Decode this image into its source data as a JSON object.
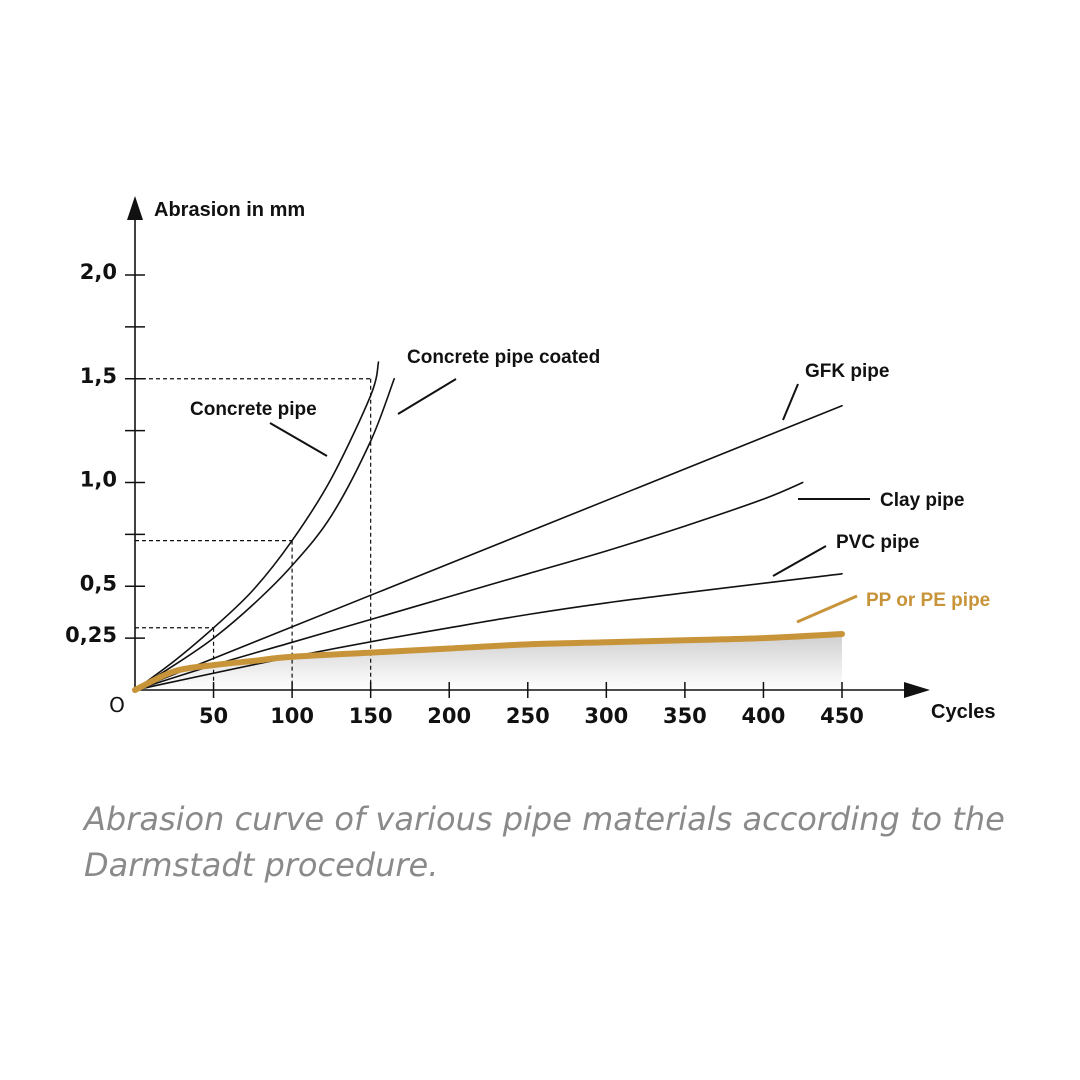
{
  "caption": "Abrasion curve of various pipe materials according to the Darmstadt procedure.",
  "colors": {
    "line": "#111111",
    "highlight": "#c8943a",
    "fill_top": "#cfcfcf",
    "fill_bottom": "#ffffff"
  },
  "chart_data": {
    "type": "line",
    "title": "",
    "xlabel": "Cycles",
    "ylabel": "Abrasion in mm",
    "origin_label": "O",
    "xlim": [
      0,
      450
    ],
    "ylim": [
      0,
      2.2
    ],
    "x_ticks": [
      {
        "value": 50,
        "label": "50"
      },
      {
        "value": 100,
        "label": "100"
      },
      {
        "value": 150,
        "label": "150"
      },
      {
        "value": 200,
        "label": "200"
      },
      {
        "value": 250,
        "label": "250"
      },
      {
        "value": 300,
        "label": "300"
      },
      {
        "value": 350,
        "label": "350"
      },
      {
        "value": 400,
        "label": "400"
      },
      {
        "value": 450,
        "label": "450"
      }
    ],
    "y_ticks": [
      {
        "value": 0.25,
        "label": "0,25"
      },
      {
        "value": 0.5,
        "label": "0,5"
      },
      {
        "value": 0.75,
        "label": ""
      },
      {
        "value": 1.0,
        "label": "1,0"
      },
      {
        "value": 1.25,
        "label": ""
      },
      {
        "value": 1.5,
        "label": "1,5"
      },
      {
        "value": 1.75,
        "label": ""
      },
      {
        "value": 2.0,
        "label": "2,0"
      }
    ],
    "reference_lines": [
      {
        "x": 50,
        "y": 0.3
      },
      {
        "x": 100,
        "y": 0.72
      },
      {
        "x": 150,
        "y": 1.5
      }
    ],
    "series": [
      {
        "name": "Concrete pipe",
        "highlight": false,
        "x": [
          0,
          25,
          50,
          75,
          100,
          125,
          150,
          155
        ],
        "y": [
          0,
          0.14,
          0.3,
          0.48,
          0.72,
          1.02,
          1.42,
          1.58
        ]
      },
      {
        "name": "Concrete pipe coated",
        "highlight": false,
        "x": [
          0,
          25,
          50,
          75,
          100,
          125,
          150,
          165
        ],
        "y": [
          0,
          0.12,
          0.25,
          0.41,
          0.6,
          0.84,
          1.2,
          1.5
        ]
      },
      {
        "name": "GFK pipe",
        "highlight": false,
        "x": [
          0,
          450
        ],
        "y": [
          0,
          1.37
        ]
      },
      {
        "name": "Clay pipe",
        "highlight": false,
        "x": [
          0,
          50,
          100,
          150,
          200,
          250,
          300,
          350,
          400,
          425
        ],
        "y": [
          0,
          0.12,
          0.23,
          0.34,
          0.45,
          0.56,
          0.67,
          0.79,
          0.92,
          1.0
        ]
      },
      {
        "name": "PVC pipe",
        "highlight": false,
        "x": [
          0,
          100,
          200,
          300,
          450
        ],
        "y": [
          0,
          0.16,
          0.3,
          0.42,
          0.56
        ]
      },
      {
        "name": "PP or PE pipe",
        "highlight": true,
        "x": [
          0,
          25,
          50,
          75,
          100,
          150,
          200,
          250,
          300,
          350,
          400,
          450
        ],
        "y": [
          0,
          0.09,
          0.12,
          0.14,
          0.16,
          0.18,
          0.2,
          0.22,
          0.23,
          0.24,
          0.25,
          0.27
        ]
      }
    ],
    "grid": false,
    "legend": "none"
  }
}
